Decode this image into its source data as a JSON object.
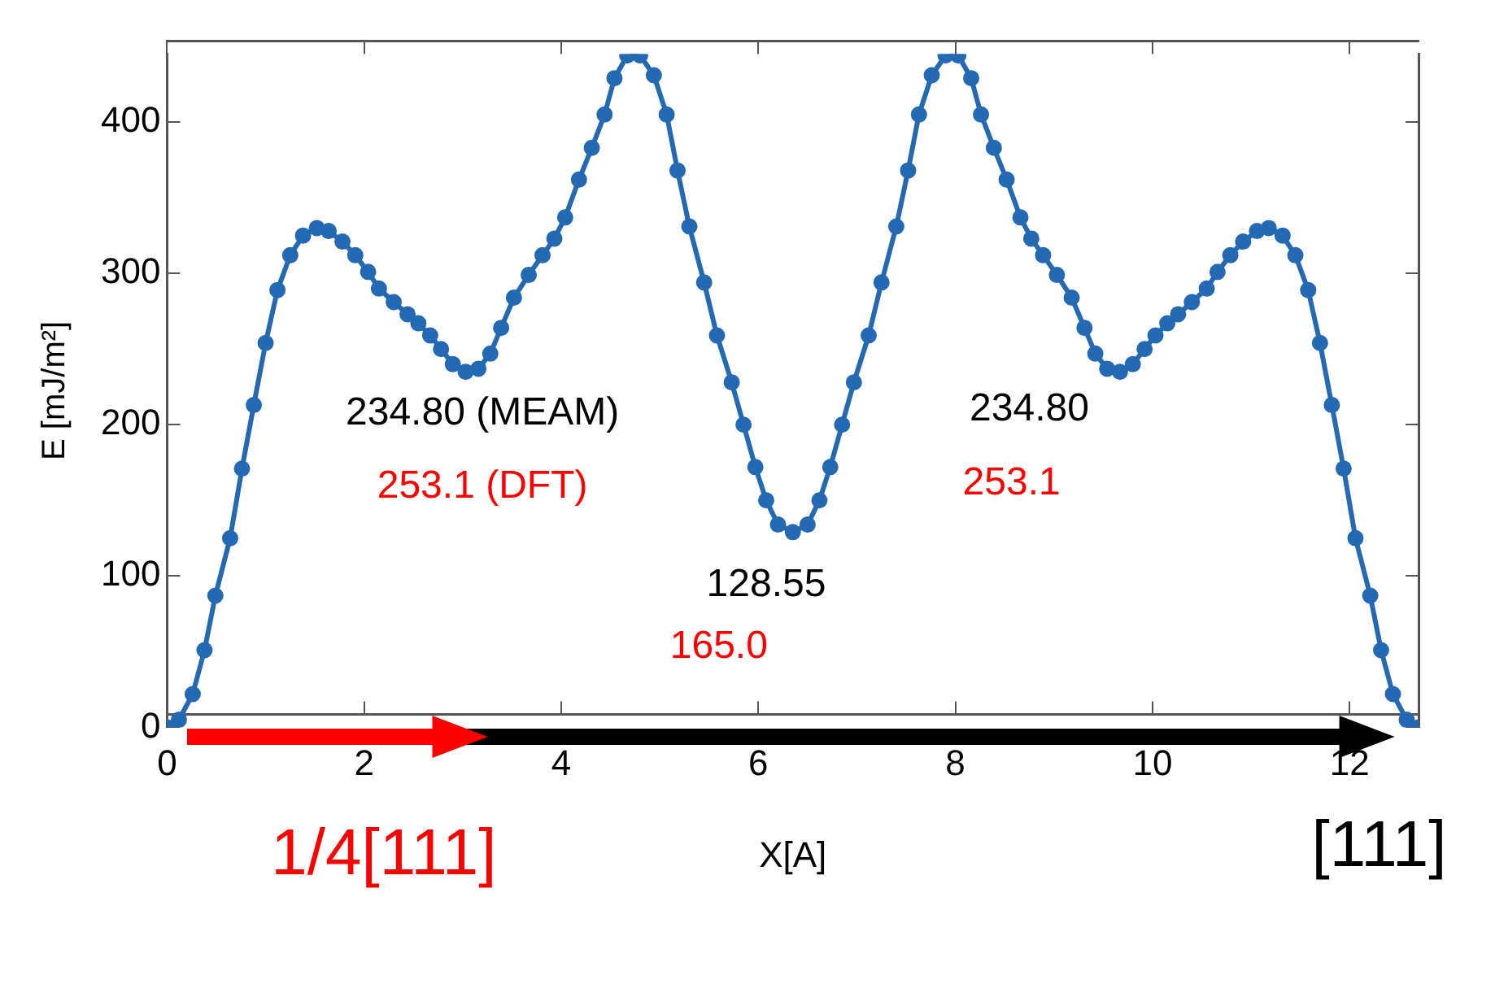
{
  "chart_data": {
    "type": "line",
    "xlabel": "X[A]",
    "ylabel": "E [mJ/m²]",
    "x": [
      0,
      0.12,
      0.26,
      0.38,
      0.49,
      0.64,
      0.76,
      0.88,
      1.0,
      1.12,
      1.25,
      1.38,
      1.52,
      1.64,
      1.78,
      1.91,
      2.04,
      2.15,
      2.3,
      2.44,
      2.55,
      2.67,
      2.78,
      2.9,
      3.03,
      3.16,
      3.28,
      3.39,
      3.52,
      3.67,
      3.81,
      3.93,
      4.04,
      4.18,
      4.31,
      4.44,
      4.54,
      4.67,
      4.8,
      4.94,
      5.07,
      5.18,
      5.3,
      5.45,
      5.58,
      5.73,
      5.85,
      5.97,
      6.08,
      6.2,
      6.35,
      6.5,
      6.62,
      6.73,
      6.85,
      6.97,
      7.12,
      7.25,
      7.4,
      7.52,
      7.63,
      7.76,
      7.9,
      8.03,
      8.16,
      8.26,
      8.39,
      8.52,
      8.66,
      8.77,
      8.89,
      9.03,
      9.18,
      9.31,
      9.42,
      9.54,
      9.67,
      9.8,
      9.92,
      10.03,
      10.15,
      10.26,
      10.4,
      10.55,
      10.66,
      10.79,
      10.92,
      11.06,
      11.18,
      11.32,
      11.45,
      11.58,
      11.7,
      11.82,
      11.94,
      12.06,
      12.21,
      12.32,
      12.44,
      12.58,
      12.7
    ],
    "series": [
      {
        "color": "#2469b3",
        "values": [
          0,
          5,
          22,
          51,
          87,
          125,
          171,
          213,
          254,
          289,
          312,
          325,
          330,
          328,
          321,
          312,
          301,
          290,
          281,
          273,
          267,
          259,
          250,
          240,
          235,
          237,
          247,
          264,
          284,
          299,
          312,
          323,
          337,
          362,
          383,
          405,
          429,
          444,
          444,
          431,
          405,
          368,
          331,
          294,
          259,
          228,
          200,
          172,
          150,
          134,
          129,
          134,
          150,
          172,
          200,
          228,
          259,
          294,
          331,
          368,
          405,
          431,
          444,
          444,
          429,
          405,
          383,
          362,
          337,
          323,
          312,
          299,
          284,
          264,
          247,
          237,
          235,
          240,
          250,
          259,
          267,
          273,
          281,
          290,
          301,
          312,
          321,
          328,
          330,
          325,
          312,
          289,
          254,
          213,
          171,
          125,
          87,
          51,
          22,
          5,
          0
        ]
      }
    ],
    "xlim": [
      0,
      12.7
    ],
    "ylim": [
      0,
      445
    ],
    "xticks": [
      0,
      2,
      4,
      6,
      8,
      10,
      12
    ],
    "yticks": [
      0,
      100,
      200,
      300,
      400
    ],
    "grid": false,
    "legend": false,
    "marker": "circle",
    "line_style": "solid",
    "annotations": [
      "234.80 (MEAM)",
      "253.1 (DFT)",
      "128.55",
      "165.0",
      "234.80",
      "253.1",
      "1/4[111]",
      "[111]"
    ]
  }
}
